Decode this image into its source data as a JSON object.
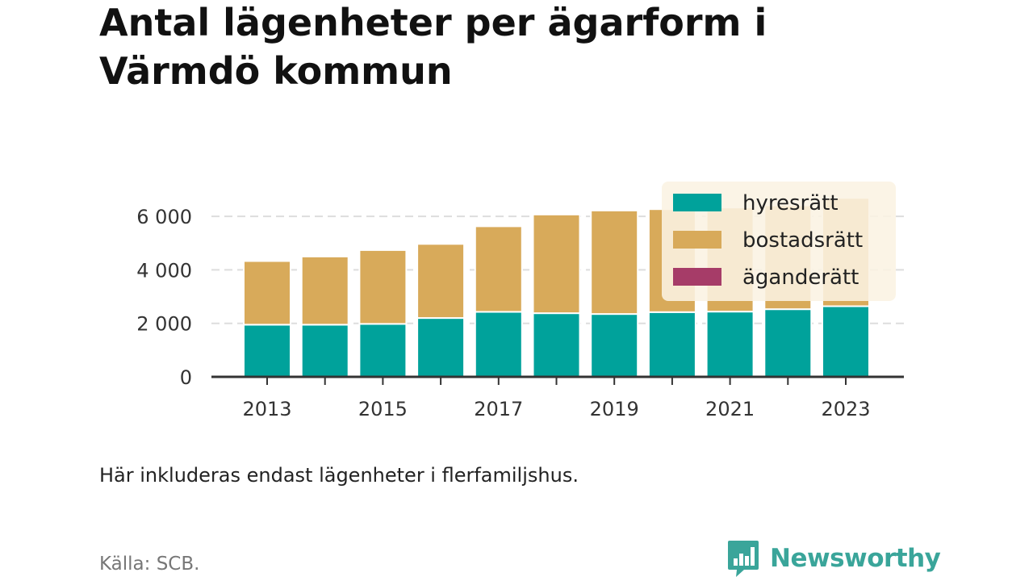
{
  "title": "Antal lägenheter per ägarform i Värmdö kommun",
  "note": "Här inkluderas endast lägenheter i flerfamiljshus.",
  "source": "Källa: SCB.",
  "brand": {
    "name": "Newsworthy",
    "icon": "newsworthy-logo-icon",
    "color": "#3aa59a"
  },
  "chart_data": {
    "type": "bar",
    "stacked": true,
    "categories": [
      "2013",
      "2014",
      "2015",
      "2016",
      "2017",
      "2018",
      "2019",
      "2020",
      "2021",
      "2022",
      "2023"
    ],
    "x_tick_labels": [
      "2013",
      "",
      "2015",
      "",
      "2017",
      "",
      "2019",
      "",
      "2021",
      "",
      "2023"
    ],
    "series": [
      {
        "name": "hyresrätt",
        "color": "#00a29b",
        "values": [
          1950,
          1950,
          1980,
          2200,
          2430,
          2380,
          2350,
          2420,
          2440,
          2530,
          2640
        ]
      },
      {
        "name": "bostadsrätt",
        "color": "#d8aa5a",
        "values": [
          2380,
          2550,
          2760,
          2770,
          3200,
          3690,
          3870,
          3850,
          3890,
          3880,
          4050
        ]
      },
      {
        "name": "äganderätt",
        "color": "#a63c68",
        "values": [
          0,
          0,
          0,
          0,
          0,
          0,
          0,
          0,
          0,
          0,
          0
        ]
      }
    ],
    "y_ticks": [
      0,
      2000,
      4000,
      6000
    ],
    "y_tick_labels": [
      "0",
      "2 000",
      "4 000",
      "6 000"
    ],
    "ylim": [
      0,
      7000
    ],
    "grid": true,
    "legend_position": "top-right"
  }
}
